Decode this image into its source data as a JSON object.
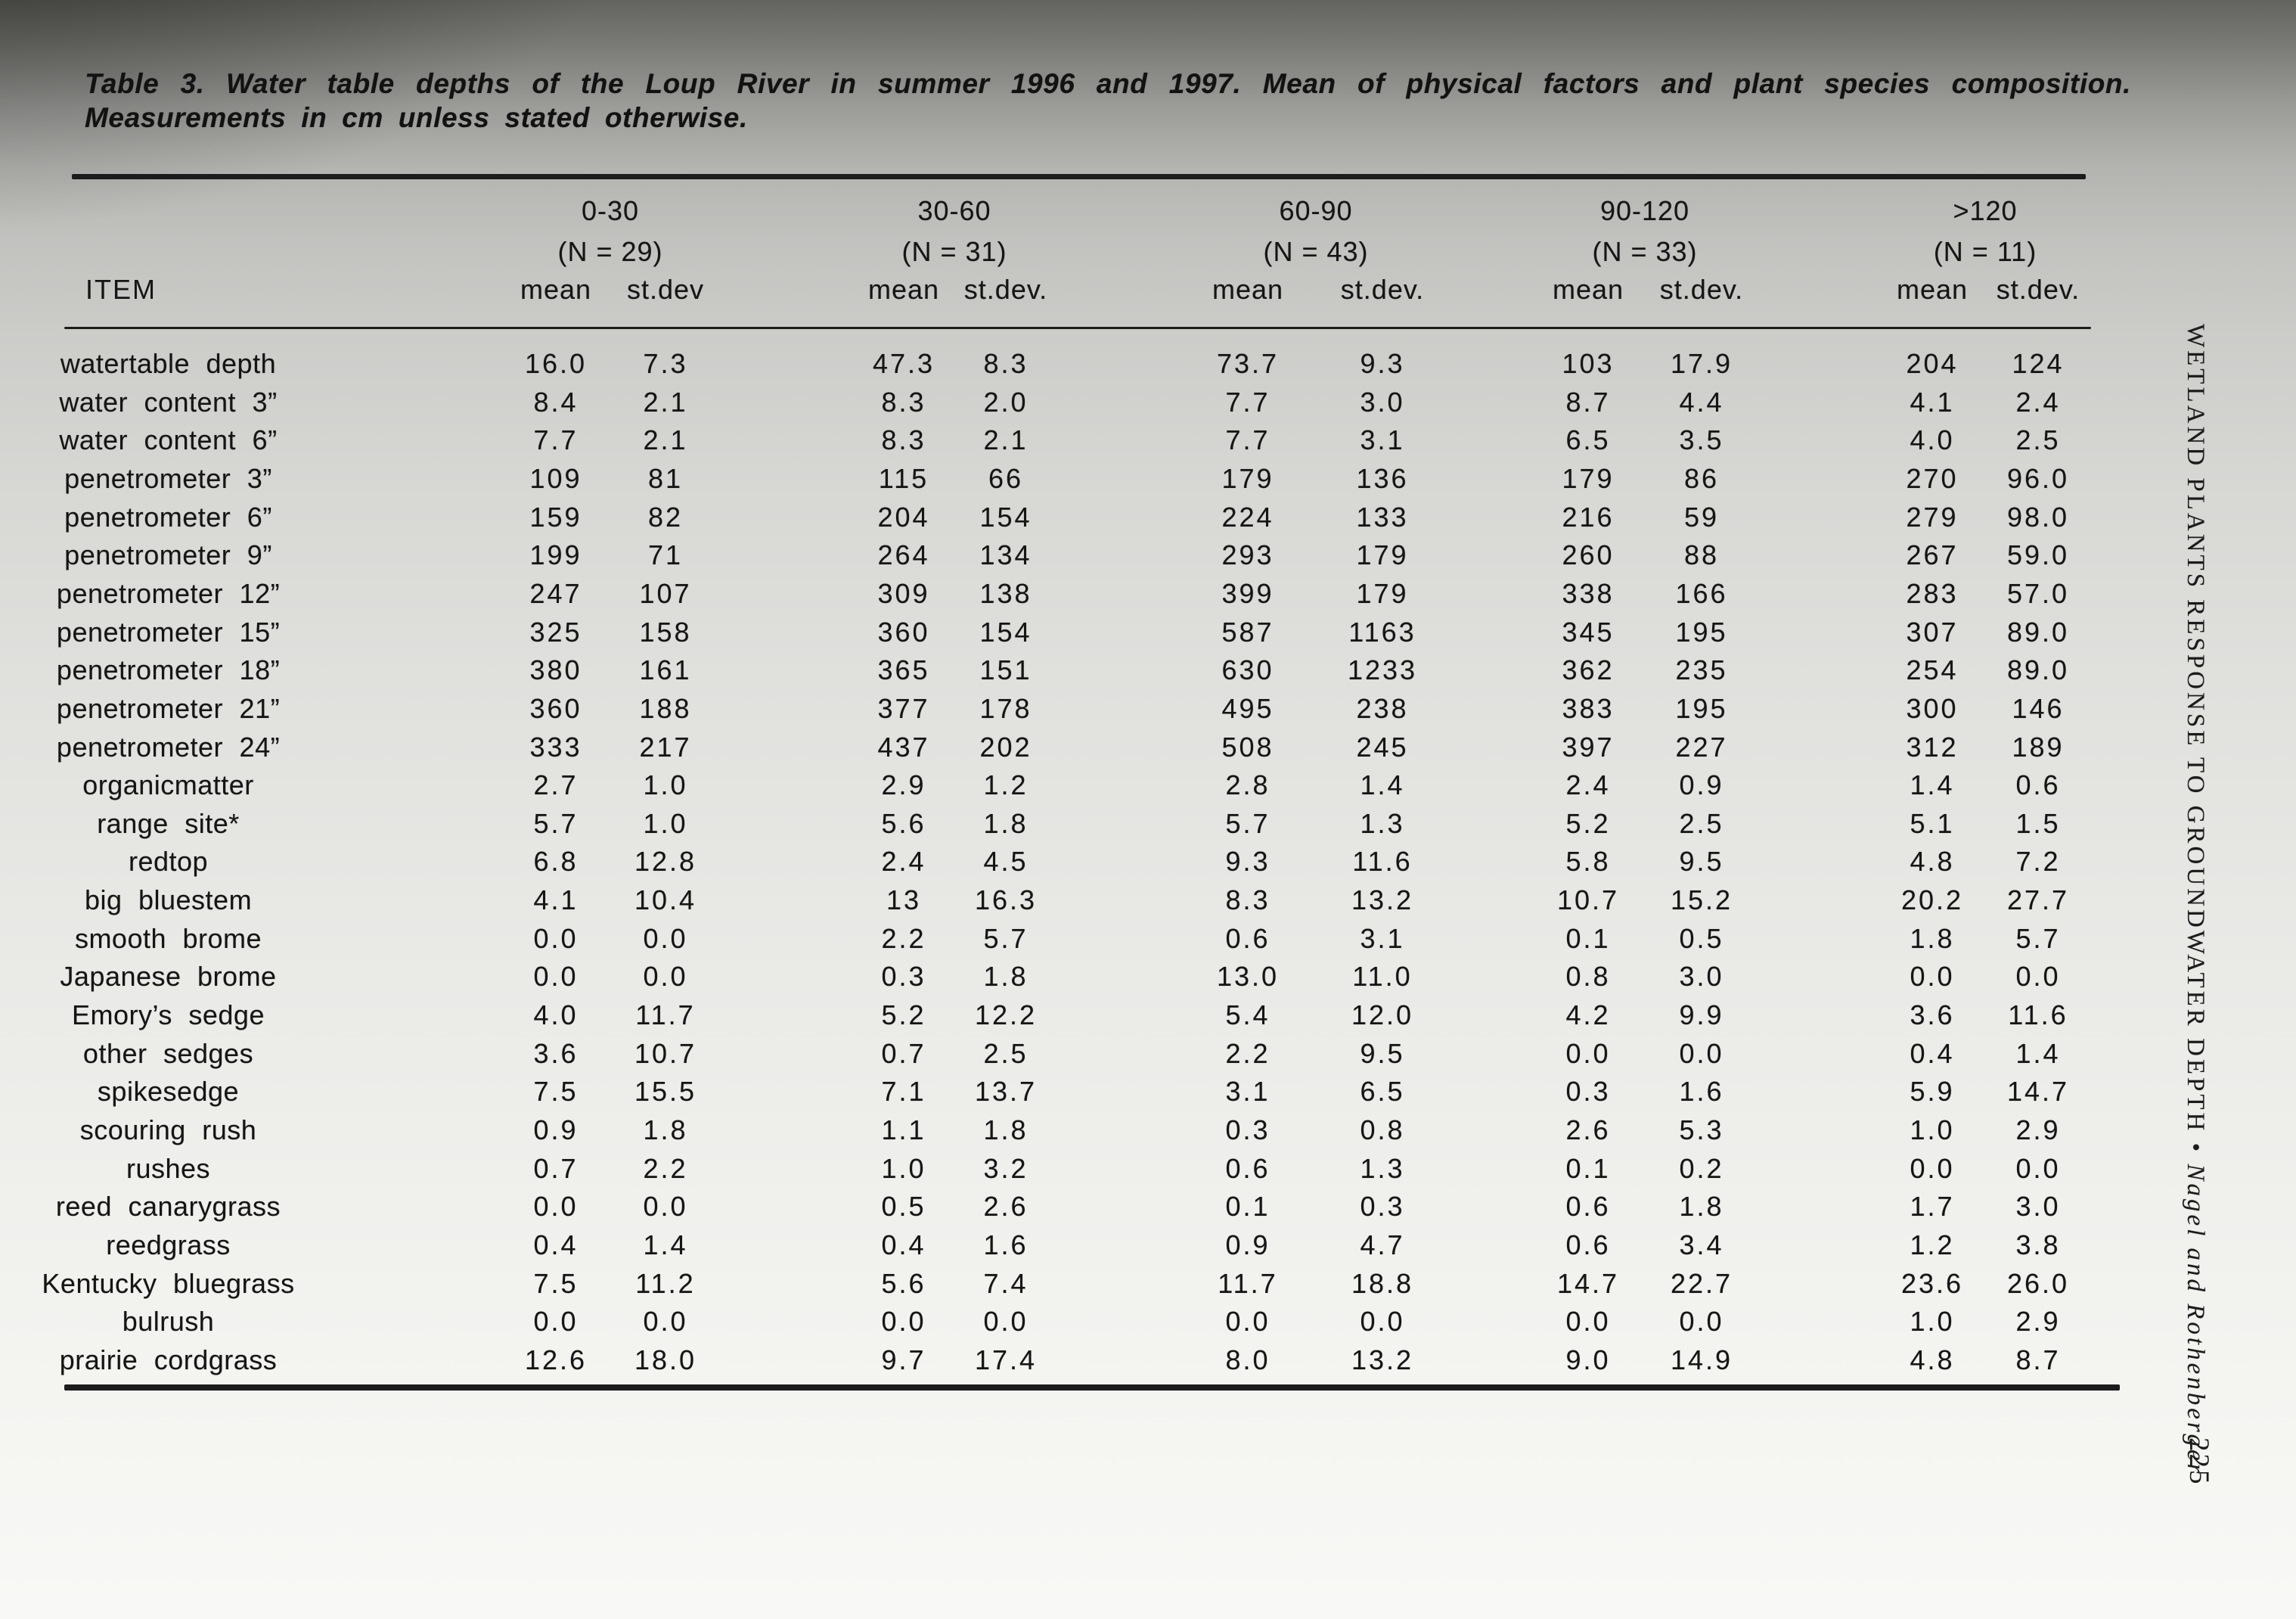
{
  "caption": {
    "line1": "Table 3.  Water table depths of the Loup River in summer 1996 and 1997.  Mean of physical factors and plant species composition.",
    "line2": "Measurements in cm unless stated otherwise."
  },
  "table": {
    "item_header": "ITEM",
    "groups": [
      {
        "range": "0-30",
        "n": "(N = 29)",
        "mean": "mean",
        "stdev": "st.dev"
      },
      {
        "range": "30-60",
        "n": "(N = 31)",
        "mean": "mean",
        "stdev": "st.dev."
      },
      {
        "range": "60-90",
        "n": "(N = 43)",
        "mean": "mean",
        "stdev": "st.dev."
      },
      {
        "range": "90-120",
        "n": "(N = 33)",
        "mean": "mean",
        "stdev": "st.dev."
      },
      {
        "range": ">120",
        "n": "(N = 11)",
        "mean": "mean",
        "stdev": "st.dev."
      }
    ],
    "rows": [
      {
        "item": "watertable depth",
        "values": [
          "16.0",
          "7.3",
          "47.3",
          "8.3",
          "73.7",
          "9.3",
          "103",
          "17.9",
          "204",
          "124"
        ]
      },
      {
        "item": "water content 3”",
        "values": [
          "8.4",
          "2.1",
          "8.3",
          "2.0",
          "7.7",
          "3.0",
          "8.7",
          "4.4",
          "4.1",
          "2.4"
        ]
      },
      {
        "item": "water content 6”",
        "values": [
          "7.7",
          "2.1",
          "8.3",
          "2.1",
          "7.7",
          "3.1",
          "6.5",
          "3.5",
          "4.0",
          "2.5"
        ]
      },
      {
        "item": "penetrometer 3”",
        "values": [
          "109",
          "81",
          "115",
          "66",
          "179",
          "136",
          "179",
          "86",
          "270",
          "96.0"
        ]
      },
      {
        "item": "penetrometer 6”",
        "values": [
          "159",
          "82",
          "204",
          "154",
          "224",
          "133",
          "216",
          "59",
          "279",
          "98.0"
        ]
      },
      {
        "item": "penetrometer 9”",
        "values": [
          "199",
          "71",
          "264",
          "134",
          "293",
          "179",
          "260",
          "88",
          "267",
          "59.0"
        ]
      },
      {
        "item": "penetrometer 12”",
        "values": [
          "247",
          "107",
          "309",
          "138",
          "399",
          "179",
          "338",
          "166",
          "283",
          "57.0"
        ]
      },
      {
        "item": "penetrometer 15”",
        "values": [
          "325",
          "158",
          "360",
          "154",
          "587",
          "1163",
          "345",
          "195",
          "307",
          "89.0"
        ]
      },
      {
        "item": "penetrometer 18”",
        "values": [
          "380",
          "161",
          "365",
          "151",
          "630",
          "1233",
          "362",
          "235",
          "254",
          "89.0"
        ]
      },
      {
        "item": "penetrometer 21”",
        "values": [
          "360",
          "188",
          "377",
          "178",
          "495",
          "238",
          "383",
          "195",
          "300",
          "146"
        ]
      },
      {
        "item": "penetrometer 24”",
        "values": [
          "333",
          "217",
          "437",
          "202",
          "508",
          "245",
          "397",
          "227",
          "312",
          "189"
        ]
      },
      {
        "item": "organicmatter",
        "values": [
          "2.7",
          "1.0",
          "2.9",
          "1.2",
          "2.8",
          "1.4",
          "2.4",
          "0.9",
          "1.4",
          "0.6"
        ]
      },
      {
        "item": "range site*",
        "values": [
          "5.7",
          "1.0",
          "5.6",
          "1.8",
          "5.7",
          "1.3",
          "5.2",
          "2.5",
          "5.1",
          "1.5"
        ]
      },
      {
        "item": "redtop",
        "values": [
          "6.8",
          "12.8",
          "2.4",
          "4.5",
          "9.3",
          "11.6",
          "5.8",
          "9.5",
          "4.8",
          "7.2"
        ]
      },
      {
        "item": "big bluestem",
        "values": [
          "4.1",
          "10.4",
          "13",
          "16.3",
          "8.3",
          "13.2",
          "10.7",
          "15.2",
          "20.2",
          "27.7"
        ]
      },
      {
        "item": "smooth brome",
        "values": [
          "0.0",
          "0.0",
          "2.2",
          "5.7",
          "0.6",
          "3.1",
          "0.1",
          "0.5",
          "1.8",
          "5.7"
        ]
      },
      {
        "item": "Japanese brome",
        "values": [
          "0.0",
          "0.0",
          "0.3",
          "1.8",
          "13.0",
          "11.0",
          "0.8",
          "3.0",
          "0.0",
          "0.0"
        ]
      },
      {
        "item": "Emory’s sedge",
        "values": [
          "4.0",
          "11.7",
          "5.2",
          "12.2",
          "5.4",
          "12.0",
          "4.2",
          "9.9",
          "3.6",
          "11.6"
        ]
      },
      {
        "item": "other sedges",
        "values": [
          "3.6",
          "10.7",
          "0.7",
          "2.5",
          "2.2",
          "9.5",
          "0.0",
          "0.0",
          "0.4",
          "1.4"
        ]
      },
      {
        "item": "spikesedge",
        "values": [
          "7.5",
          "15.5",
          "7.1",
          "13.7",
          "3.1",
          "6.5",
          "0.3",
          "1.6",
          "5.9",
          "14.7"
        ]
      },
      {
        "item": "scouring rush",
        "values": [
          "0.9",
          "1.8",
          "1.1",
          "1.8",
          "0.3",
          "0.8",
          "2.6",
          "5.3",
          "1.0",
          "2.9"
        ]
      },
      {
        "item": "rushes",
        "values": [
          "0.7",
          "2.2",
          "1.0",
          "3.2",
          "0.6",
          "1.3",
          "0.1",
          "0.2",
          "0.0",
          "0.0"
        ]
      },
      {
        "item": "reed canarygrass",
        "values": [
          "0.0",
          "0.0",
          "0.5",
          "2.6",
          "0.1",
          "0.3",
          "0.6",
          "1.8",
          "1.7",
          "3.0"
        ]
      },
      {
        "item": "reedgrass",
        "values": [
          "0.4",
          "1.4",
          "0.4",
          "1.6",
          "0.9",
          "4.7",
          "0.6",
          "3.4",
          "1.2",
          "3.8"
        ]
      },
      {
        "item": "Kentucky bluegrass",
        "values": [
          "7.5",
          "11.2",
          "5.6",
          "7.4",
          "11.7",
          "18.8",
          "14.7",
          "22.7",
          "23.6",
          "26.0"
        ]
      },
      {
        "item": "bulrush",
        "values": [
          "0.0",
          "0.0",
          "0.0",
          "0.0",
          "0.0",
          "0.0",
          "0.0",
          "0.0",
          "1.0",
          "2.9"
        ]
      },
      {
        "item": "prairie cordgrass",
        "values": [
          "12.6",
          "18.0",
          "9.7",
          "17.4",
          "8.0",
          "13.2",
          "9.0",
          "14.9",
          "4.8",
          "8.7"
        ]
      }
    ]
  },
  "sidebar": {
    "journal_title": "WETLAND PLANTS RESPONSE TO GROUNDWATER DEPTH",
    "separator": "•",
    "authors": "Nagel and Rothenberger",
    "page_number": "225"
  },
  "colors": {
    "ink": "#1c1c1c",
    "paper_light": "#f8f8f6",
    "paper_dark_edge": "#63635f"
  }
}
